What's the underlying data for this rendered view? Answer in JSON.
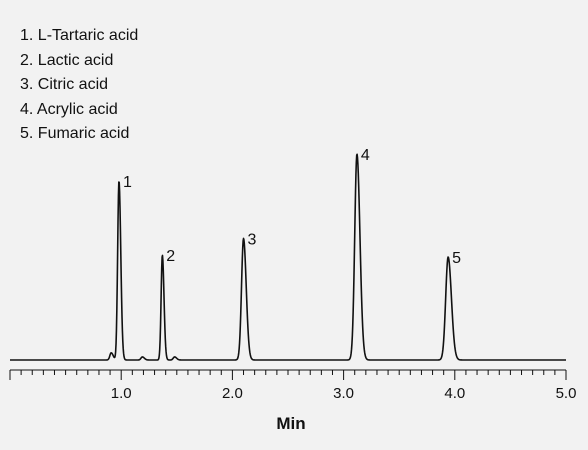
{
  "chart_data": {
    "type": "line",
    "title": "",
    "xlabel": "Min",
    "ylabel": "",
    "xlim": [
      0,
      5
    ],
    "ylim": [
      0,
      1
    ],
    "grid": false,
    "legend_placement": "top-left",
    "x_ticks": [
      {
        "value": 1.0,
        "label": "1.0"
      },
      {
        "value": 2.0,
        "label": "2.0"
      },
      {
        "value": 3.0,
        "label": "3.0"
      },
      {
        "value": 4.0,
        "label": "4.0"
      },
      {
        "value": 5.0,
        "label": "5.0"
      }
    ],
    "minor_tick_step": 0.1,
    "legend": [
      "1. L-Tartaric acid",
      "2. Lactic acid",
      "3. Citric acid",
      "4. Acrylic acid",
      "5. Fumaric acid"
    ],
    "peaks": [
      {
        "label": "1",
        "compound": "L-Tartaric acid",
        "retention_time": 0.98,
        "height": 0.87
      },
      {
        "label": "2",
        "compound": "Lactic acid",
        "retention_time": 1.37,
        "height": 0.51
      },
      {
        "label": "3",
        "compound": "Citric acid",
        "retention_time": 2.1,
        "height": 0.59
      },
      {
        "label": "4",
        "compound": "Acrylic acid",
        "retention_time": 3.12,
        "height": 1.0
      },
      {
        "label": "5",
        "compound": "Fumaric acid",
        "retention_time": 3.94,
        "height": 0.5
      }
    ],
    "minor_peaks": [
      {
        "retention_time": 0.91,
        "height": 0.035
      },
      {
        "retention_time": 1.19,
        "height": 0.015
      },
      {
        "retention_time": 1.48,
        "height": 0.015
      }
    ]
  }
}
